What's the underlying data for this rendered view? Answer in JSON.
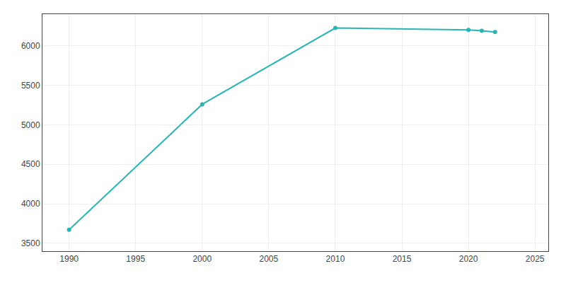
{
  "chart_data": {
    "type": "line",
    "x": [
      1990,
      2000,
      2010,
      2020,
      2021,
      2022
    ],
    "values": [
      3670,
      5259,
      6225,
      6200,
      6190,
      6175
    ],
    "color": "#2ab5b5",
    "marker": "circle",
    "xlim": [
      1988,
      2026
    ],
    "ylim": [
      3400,
      6400
    ],
    "xticks": [
      1990,
      1995,
      2000,
      2005,
      2010,
      2015,
      2020,
      2025
    ],
    "yticks": [
      3500,
      4000,
      4500,
      5000,
      5500,
      6000
    ],
    "grid": true
  }
}
